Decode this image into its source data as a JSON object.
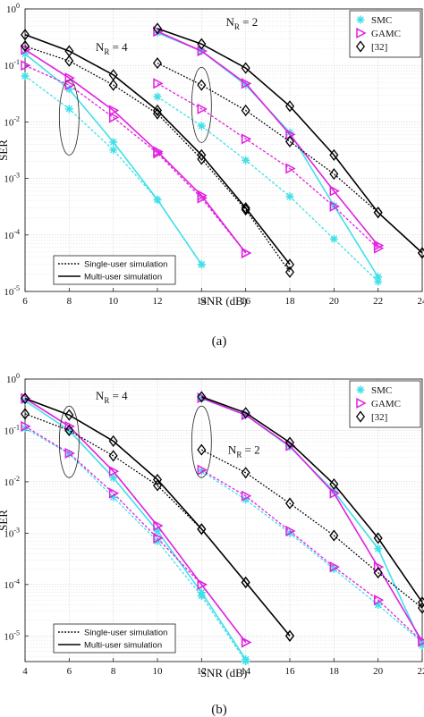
{
  "chart_data": [
    {
      "type": "line",
      "panel_label": "(a)",
      "xlabel": "SNR (dB)",
      "ylabel": "SER",
      "xlim": [
        6,
        24
      ],
      "ylim_log10": [
        -5,
        0
      ],
      "log_y": true,
      "grid": true,
      "xticks": [
        6,
        8,
        10,
        12,
        14,
        16,
        18,
        20,
        22,
        24
      ],
      "legend_markers": {
        "position": "top-right",
        "entries": [
          "SMC",
          "GAMC",
          "[32]"
        ]
      },
      "legend_lines": {
        "position": "bottom-left",
        "entries": [
          "Single-user simulation",
          "Multi-user simulation"
        ]
      },
      "annotations": [
        {
          "text": "N",
          "sub": "R",
          "rest": " = 4",
          "x": 9.2,
          "y": 0.18
        },
        {
          "text": "N",
          "sub": "R",
          "rest": " = 2",
          "x": 15.1,
          "y": 0.5
        }
      ],
      "ellipses": [
        {
          "x": 8,
          "y": 0.012
        },
        {
          "x": 14,
          "y": 0.02
        }
      ],
      "series": [
        {
          "group": "NR4",
          "marker": "star",
          "color": "#40e0e8",
          "dash": "dashed",
          "x": [
            6,
            8,
            10,
            12,
            14
          ],
          "y": [
            0.065,
            0.017,
            0.0032,
            0.00042,
            3e-05
          ]
        },
        {
          "group": "NR4",
          "marker": "star",
          "color": "#40e0e8",
          "dash": "solid",
          "x": [
            6,
            8,
            10,
            12,
            14
          ],
          "y": [
            0.16,
            0.038,
            0.0044,
            0.00042,
            3e-05
          ]
        },
        {
          "group": "NR4",
          "marker": "triangle",
          "color": "#e020e0",
          "dash": "dashed",
          "x": [
            6,
            8,
            10,
            12,
            14,
            16
          ],
          "y": [
            0.1,
            0.045,
            0.012,
            0.0028,
            0.00045,
            4.8e-05
          ]
        },
        {
          "group": "NR4",
          "marker": "triangle",
          "color": "#e020e0",
          "dash": "solid",
          "x": [
            6,
            8,
            10,
            12,
            14,
            16
          ],
          "y": [
            0.19,
            0.06,
            0.016,
            0.003,
            0.0005,
            4.8e-05
          ]
        },
        {
          "group": "NR4",
          "marker": "diamond",
          "color": "#000000",
          "dash": "dashed",
          "x": [
            6,
            8,
            10,
            12,
            14,
            16,
            18
          ],
          "y": [
            0.22,
            0.12,
            0.045,
            0.014,
            0.0022,
            0.00028,
            2.2e-05
          ]
        },
        {
          "group": "NR4",
          "marker": "diamond",
          "color": "#000000",
          "dash": "solid",
          "x": [
            6,
            8,
            10,
            12,
            14,
            16,
            18
          ],
          "y": [
            0.35,
            0.18,
            0.068,
            0.016,
            0.0026,
            0.0003,
            3e-05
          ]
        },
        {
          "group": "NR2",
          "marker": "star",
          "color": "#40e0e8",
          "dash": "dashed",
          "x": [
            12,
            14,
            16,
            18,
            20,
            22
          ],
          "y": [
            0.028,
            0.0085,
            0.0021,
            0.00048,
            8.5e-05,
            1.5e-05
          ]
        },
        {
          "group": "NR2",
          "marker": "star",
          "color": "#40e0e8",
          "dash": "solid",
          "x": [
            12,
            14,
            16,
            18,
            20,
            22
          ],
          "y": [
            0.38,
            0.18,
            0.045,
            0.0065,
            0.00033,
            1.8e-05
          ]
        },
        {
          "group": "NR2",
          "marker": "triangle",
          "color": "#e020e0",
          "dash": "dashed",
          "x": [
            12,
            14,
            16,
            18,
            20,
            22
          ],
          "y": [
            0.048,
            0.017,
            0.005,
            0.0015,
            0.00032,
            5.8e-05
          ]
        },
        {
          "group": "NR2",
          "marker": "triangle",
          "color": "#e020e0",
          "dash": "solid",
          "x": [
            12,
            14,
            16,
            18,
            20,
            22
          ],
          "y": [
            0.4,
            0.18,
            0.048,
            0.006,
            0.0006,
            6.5e-05
          ]
        },
        {
          "group": "NR2",
          "marker": "diamond",
          "color": "#000000",
          "dash": "dashed",
          "x": [
            12,
            14,
            16,
            18,
            20,
            22,
            24
          ],
          "y": [
            0.11,
            0.045,
            0.016,
            0.0045,
            0.0012,
            0.00025,
            4.8e-05
          ]
        },
        {
          "group": "NR2",
          "marker": "diamond",
          "color": "#000000",
          "dash": "solid",
          "x": [
            12,
            14,
            16,
            18,
            20,
            22,
            24
          ],
          "y": [
            0.45,
            0.24,
            0.09,
            0.019,
            0.0026,
            0.00025,
            4.8e-05
          ]
        }
      ]
    },
    {
      "type": "line",
      "panel_label": "(b)",
      "xlabel": "SNR (dB)",
      "ylabel": "SER",
      "xlim": [
        4,
        22
      ],
      "ylim_log10": [
        -5.5,
        0
      ],
      "log_y": true,
      "grid": true,
      "xticks": [
        4,
        6,
        8,
        10,
        12,
        14,
        16,
        18,
        20,
        22
      ],
      "legend_markers": {
        "position": "top-right",
        "entries": [
          "SMC",
          "GAMC",
          "[32]"
        ]
      },
      "legend_lines": {
        "position": "bottom-left",
        "entries": [
          "Single-user simulation",
          "Multi-user simulation"
        ]
      },
      "annotations": [
        {
          "text": "N",
          "sub": "R",
          "rest": " = 4",
          "x": 7.2,
          "y": 0.4
        },
        {
          "text": "N",
          "sub": "R",
          "rest": " = 2",
          "x": 13.2,
          "y": 0.035
        }
      ],
      "ellipses": [
        {
          "x": 6,
          "y": 0.06
        },
        {
          "x": 12,
          "y": 0.06
        }
      ],
      "series": [
        {
          "group": "NR4",
          "marker": "star",
          "color": "#40e0e8",
          "dash": "dashed",
          "x": [
            4,
            6,
            8,
            10,
            12,
            14
          ],
          "y": [
            0.11,
            0.035,
            0.005,
            0.0007,
            6e-05,
            3.2e-06
          ]
        },
        {
          "group": "NR4",
          "marker": "star",
          "color": "#40e0e8",
          "dash": "solid",
          "x": [
            4,
            6,
            8,
            10,
            12,
            14
          ],
          "y": [
            0.38,
            0.1,
            0.012,
            0.0011,
            7e-05,
            3.5e-06
          ]
        },
        {
          "group": "NR4",
          "marker": "triangle",
          "color": "#e020e0",
          "dash": "dashed",
          "x": [
            4,
            6,
            8,
            10,
            12,
            14
          ],
          "y": [
            0.12,
            0.036,
            0.006,
            0.0008,
            0.0001,
            7.5e-06
          ]
        },
        {
          "group": "NR4",
          "marker": "triangle",
          "color": "#e020e0",
          "dash": "solid",
          "x": [
            4,
            6,
            8,
            10,
            12,
            14
          ],
          "y": [
            0.42,
            0.12,
            0.016,
            0.0014,
            0.0001,
            7.5e-06
          ]
        },
        {
          "group": "NR4",
          "marker": "diamond",
          "color": "#000000",
          "dash": "dashed",
          "x": [
            4,
            6,
            8,
            10,
            12,
            14,
            16
          ],
          "y": [
            0.21,
            0.1,
            0.032,
            0.0085,
            0.0012,
            0.00011,
            1e-05
          ]
        },
        {
          "group": "NR4",
          "marker": "diamond",
          "color": "#000000",
          "dash": "solid",
          "x": [
            4,
            6,
            8,
            10,
            12,
            14,
            16
          ],
          "y": [
            0.42,
            0.2,
            0.062,
            0.011,
            0.0012,
            0.00011,
            1e-05
          ]
        },
        {
          "group": "NR2",
          "marker": "star",
          "color": "#40e0e8",
          "dash": "dashed",
          "x": [
            12,
            14,
            16,
            18,
            20,
            22
          ],
          "y": [
            0.016,
            0.0045,
            0.001,
            0.0002,
            4e-05,
            7.5e-06
          ]
        },
        {
          "group": "NR2",
          "marker": "star",
          "color": "#40e0e8",
          "dash": "solid",
          "x": [
            12,
            14,
            16,
            18,
            20,
            22
          ],
          "y": [
            0.42,
            0.2,
            0.048,
            0.0065,
            0.0005,
            6.5e-06
          ]
        },
        {
          "group": "NR2",
          "marker": "triangle",
          "color": "#e020e0",
          "dash": "dashed",
          "x": [
            12,
            14,
            16,
            18,
            20,
            22
          ],
          "y": [
            0.017,
            0.0053,
            0.0011,
            0.00022,
            5e-05,
            7.8e-06
          ]
        },
        {
          "group": "NR2",
          "marker": "triangle",
          "color": "#e020e0",
          "dash": "solid",
          "x": [
            12,
            14,
            16,
            18,
            20,
            22
          ],
          "y": [
            0.43,
            0.2,
            0.05,
            0.006,
            0.00022,
            7.8e-06
          ]
        },
        {
          "group": "NR2",
          "marker": "diamond",
          "color": "#000000",
          "dash": "dashed",
          "x": [
            12,
            14,
            16,
            18,
            20,
            22
          ],
          "y": [
            0.042,
            0.015,
            0.0038,
            0.0009,
            0.00017,
            3.5e-05
          ]
        },
        {
          "group": "NR2",
          "marker": "diamond",
          "color": "#000000",
          "dash": "solid",
          "x": [
            12,
            14,
            16,
            18,
            20,
            22
          ],
          "y": [
            0.45,
            0.22,
            0.058,
            0.009,
            0.0008,
            4.5e-05
          ]
        }
      ]
    }
  ]
}
